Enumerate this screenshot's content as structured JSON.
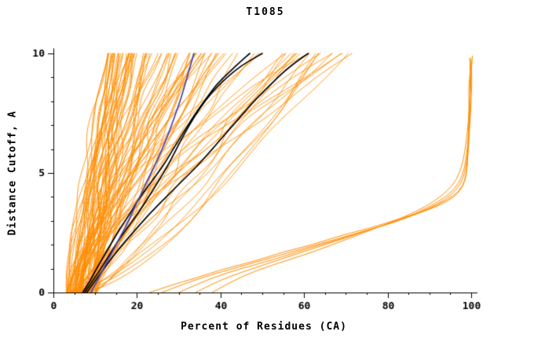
{
  "chart_data": {
    "type": "line",
    "title": "T1085",
    "xlabel": "Percent of Residues (CA)",
    "ylabel": "Distance Cutoff, A",
    "xlim": [
      0,
      100
    ],
    "ylim": [
      0,
      10
    ],
    "x_ticks": [
      0,
      20,
      40,
      60,
      80,
      100
    ],
    "y_ticks": [
      0,
      5,
      10
    ],
    "x_minor_step": 5,
    "y_minor_step": 1,
    "grid": false,
    "legend": "none",
    "colors": {
      "orange": "#ff8c00",
      "black": "#000000",
      "blue": "#4444bb",
      "axis": "#000000"
    },
    "series": [
      {
        "name": "highlighted-model-blue",
        "color": "blue",
        "width": 1.7,
        "points": [
          [
            9,
            0
          ],
          [
            10.5,
            0.5
          ],
          [
            12,
            1
          ],
          [
            13.5,
            1.5
          ],
          [
            15,
            2
          ],
          [
            16.5,
            2.5
          ],
          [
            18,
            3
          ],
          [
            19.5,
            3.6
          ],
          [
            21,
            4.1
          ],
          [
            22.5,
            4.7
          ],
          [
            24,
            5.2
          ],
          [
            25.5,
            5.8
          ],
          [
            27,
            6.4
          ],
          [
            28.5,
            7.1
          ],
          [
            29.5,
            7.6
          ],
          [
            30.5,
            8.1
          ],
          [
            31.5,
            8.7
          ],
          [
            32.3,
            9.2
          ],
          [
            33,
            9.6
          ],
          [
            33.6,
            10
          ]
        ]
      },
      {
        "name": "highlighted-model-black-1",
        "color": "black",
        "width": 1.7,
        "points": [
          [
            7,
            0
          ],
          [
            8.5,
            0.4
          ],
          [
            10,
            0.9
          ],
          [
            12,
            1.5
          ],
          [
            14,
            2.1
          ],
          [
            16,
            2.7
          ],
          [
            18,
            3.2
          ],
          [
            20,
            3.8
          ],
          [
            22.5,
            4.4
          ],
          [
            25,
            5.0
          ],
          [
            27,
            5.5
          ],
          [
            29,
            6.1
          ],
          [
            31.5,
            6.8
          ],
          [
            34,
            7.5
          ],
          [
            36.5,
            8.1
          ],
          [
            39,
            8.7
          ],
          [
            42,
            9.2
          ],
          [
            45,
            9.7
          ],
          [
            47,
            10
          ]
        ]
      },
      {
        "name": "highlighted-model-black-2",
        "color": "black",
        "width": 1.7,
        "points": [
          [
            8,
            0
          ],
          [
            10,
            0.5
          ],
          [
            12.5,
            1.1
          ],
          [
            15.5,
            1.8
          ],
          [
            19,
            2.5
          ],
          [
            23,
            3.3
          ],
          [
            27,
            4.0
          ],
          [
            31,
            4.7
          ],
          [
            34.5,
            5.3
          ],
          [
            38,
            6.0
          ],
          [
            41.5,
            6.7
          ],
          [
            45,
            7.4
          ],
          [
            48.5,
            8.1
          ],
          [
            52,
            8.7
          ],
          [
            55.5,
            9.3
          ],
          [
            58.5,
            9.7
          ],
          [
            61,
            10
          ]
        ]
      },
      {
        "name": "highlighted-model-black-3",
        "color": "black",
        "width": 1.7,
        "points": [
          [
            7.5,
            0
          ],
          [
            9,
            0.4
          ],
          [
            11,
            0.9
          ],
          [
            13.5,
            1.6
          ],
          [
            16,
            2.3
          ],
          [
            18.5,
            2.9
          ],
          [
            21,
            3.5
          ],
          [
            23.5,
            4.2
          ],
          [
            26,
            4.9
          ],
          [
            28,
            5.5
          ],
          [
            30,
            6.2
          ],
          [
            32.5,
            7.0
          ],
          [
            35,
            7.7
          ],
          [
            38,
            8.4
          ],
          [
            41.5,
            9.0
          ],
          [
            45,
            9.5
          ],
          [
            49,
            9.9
          ],
          [
            50,
            10
          ]
        ]
      },
      {
        "name": "outlier-model-1",
        "color": "orange",
        "width": 1,
        "points": [
          [
            23,
            0
          ],
          [
            28,
            0.3
          ],
          [
            34,
            0.6
          ],
          [
            41,
            1.0
          ],
          [
            48,
            1.3
          ],
          [
            55,
            1.7
          ],
          [
            62,
            2.0
          ],
          [
            69,
            2.4
          ],
          [
            76,
            2.7
          ],
          [
            83,
            3.1
          ],
          [
            89,
            3.4
          ],
          [
            93,
            3.7
          ],
          [
            96,
            4.0
          ],
          [
            98,
            4.4
          ],
          [
            99,
            5.0
          ],
          [
            99.3,
            6.2
          ],
          [
            99.5,
            7.5
          ],
          [
            99.4,
            8.6
          ],
          [
            99.8,
            9.3
          ],
          [
            99.6,
            9.8
          ]
        ]
      },
      {
        "name": "outlier-model-2",
        "color": "orange",
        "width": 1,
        "points": [
          [
            26,
            0
          ],
          [
            31,
            0.35
          ],
          [
            37,
            0.7
          ],
          [
            44,
            1.05
          ],
          [
            51,
            1.4
          ],
          [
            58,
            1.75
          ],
          [
            65,
            2.1
          ],
          [
            72,
            2.45
          ],
          [
            79,
            2.8
          ],
          [
            85,
            3.15
          ],
          [
            90,
            3.5
          ],
          [
            94,
            3.85
          ],
          [
            97,
            4.2
          ],
          [
            98.6,
            4.7
          ],
          [
            99.2,
            5.6
          ],
          [
            99.6,
            6.8
          ],
          [
            99.8,
            8.0
          ],
          [
            99.7,
            9.0
          ],
          [
            100,
            9.6
          ]
        ]
      },
      {
        "name": "outlier-model-3",
        "color": "orange",
        "width": 1,
        "points": [
          [
            30,
            0
          ],
          [
            35,
            0.4
          ],
          [
            41,
            0.8
          ],
          [
            48,
            1.15
          ],
          [
            55,
            1.5
          ],
          [
            61,
            1.85
          ],
          [
            68,
            2.2
          ],
          [
            74,
            2.55
          ],
          [
            81,
            2.9
          ],
          [
            87,
            3.3
          ],
          [
            92,
            3.7
          ],
          [
            95,
            4.05
          ],
          [
            97.5,
            4.5
          ],
          [
            98.8,
            5.2
          ],
          [
            99.4,
            6.4
          ],
          [
            99.9,
            7.6
          ],
          [
            100.2,
            8.8
          ],
          [
            100,
            9.7
          ]
        ]
      },
      {
        "name": "outlier-model-4",
        "color": "orange",
        "width": 1,
        "points": [
          [
            34,
            0
          ],
          [
            39,
            0.45
          ],
          [
            45,
            0.85
          ],
          [
            52,
            1.25
          ],
          [
            58,
            1.6
          ],
          [
            65,
            2.0
          ],
          [
            71,
            2.35
          ],
          [
            77,
            2.7
          ],
          [
            84,
            3.1
          ],
          [
            89,
            3.5
          ],
          [
            93,
            3.9
          ],
          [
            96,
            4.3
          ],
          [
            98,
            4.9
          ],
          [
            99,
            5.8
          ],
          [
            99.5,
            7.0
          ],
          [
            99.7,
            8.2
          ],
          [
            100.1,
            9.2
          ],
          [
            99.9,
            9.8
          ]
        ]
      },
      {
        "name": "outlier-model-5",
        "color": "orange",
        "width": 1,
        "points": [
          [
            38,
            0
          ],
          [
            43,
            0.5
          ],
          [
            49,
            0.95
          ],
          [
            56,
            1.35
          ],
          [
            63,
            1.75
          ],
          [
            69,
            2.15
          ],
          [
            75,
            2.55
          ],
          [
            81,
            2.95
          ],
          [
            87,
            3.4
          ],
          [
            91,
            3.8
          ],
          [
            94,
            4.2
          ],
          [
            96.5,
            4.7
          ],
          [
            98,
            5.4
          ],
          [
            99,
            6.5
          ],
          [
            99.6,
            7.8
          ],
          [
            99.9,
            9.0
          ],
          [
            100.3,
            9.9
          ]
        ]
      }
    ],
    "orange_fan": {
      "description": "dense bundle of server model curves",
      "count": 95,
      "seed": 12,
      "start_min": 3,
      "start_max": 10.5,
      "end_min": 13,
      "end_max": 74,
      "end_bias": 1.6,
      "shape_min": 0.6,
      "shape_max": 1.75,
      "wiggle": 1.1
    }
  }
}
